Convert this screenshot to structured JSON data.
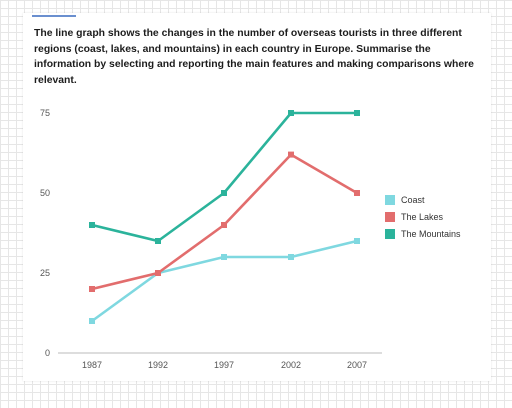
{
  "prompt": "The line graph shows the changes in the number of overseas tourists in three different regions (coast, lakes, and mountains) in each country in Europe. Summarise the information by selecting and reporting the main features and making comparisons where relevant.",
  "chart_data": {
    "type": "line",
    "title": "",
    "xlabel": "",
    "ylabel": "",
    "x": [
      "1987",
      "1992",
      "1997",
      "2002",
      "2007"
    ],
    "ylim": [
      0,
      75
    ],
    "yticks": [
      "0",
      "25",
      "50",
      "75"
    ],
    "series": [
      {
        "name": "Coast",
        "color": "#7fd8e0",
        "values": [
          10,
          25,
          30,
          30,
          35
        ]
      },
      {
        "name": "The Lakes",
        "color": "#e26d6d",
        "values": [
          20,
          25,
          40,
          62,
          50
        ]
      },
      {
        "name": "The Mountains",
        "color": "#2bb39b",
        "values": [
          40,
          35,
          50,
          75,
          75
        ]
      }
    ],
    "legend_position": "right",
    "grid": false
  }
}
